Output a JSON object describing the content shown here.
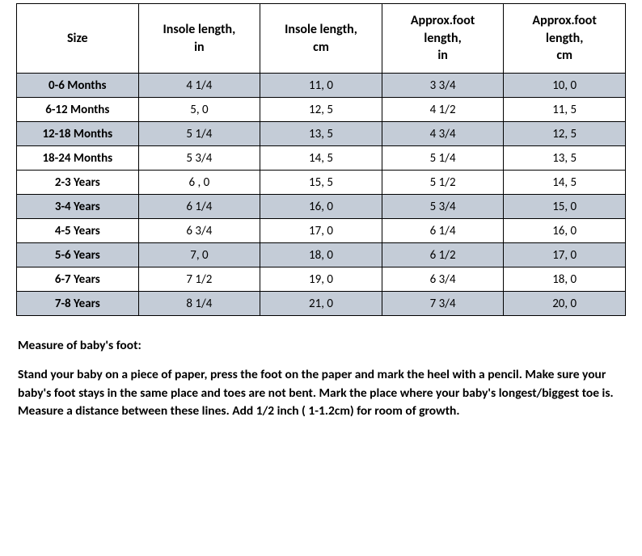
{
  "table": {
    "columns": [
      "Size",
      "Insole length,\nin",
      "Insole length,\ncm",
      "Approx.foot\nlength,\nin",
      "Approx.foot\nlength,\ncm"
    ],
    "col_widths_pct": [
      20,
      20,
      20,
      20,
      20
    ],
    "header_bg": "#ffffff",
    "shaded_bg": "#c4ccd7",
    "border_color": "#000000",
    "rows": [
      {
        "cells": [
          "0-6 Months",
          "4 1/4",
          "11, 0",
          "3 3/4",
          "10, 0"
        ],
        "shaded": true
      },
      {
        "cells": [
          "6-12 Months",
          "5, 0",
          "12, 5",
          "4 1/2",
          "11, 5"
        ],
        "shaded": false
      },
      {
        "cells": [
          "12-18 Months",
          "5 1/4",
          "13, 5",
          "4 3/4",
          "12, 5"
        ],
        "shaded": true
      },
      {
        "cells": [
          "18-24 Months",
          "5 3/4",
          "14, 5",
          "5 1/4",
          "13, 5"
        ],
        "shaded": false
      },
      {
        "cells": [
          "2-3 Years",
          "6 , 0",
          "15, 5",
          "5 1/2",
          "14, 5"
        ],
        "shaded": false
      },
      {
        "cells": [
          "3-4 Years",
          "6 1/4",
          "16, 0",
          "5 3/4",
          "15, 0"
        ],
        "shaded": true
      },
      {
        "cells": [
          "4-5 Years",
          "6 3/4",
          "17, 0",
          "6 1/4",
          "16, 0"
        ],
        "shaded": false
      },
      {
        "cells": [
          "5-6 Years",
          "7, 0",
          "18, 0",
          "6 1/2",
          "17, 0"
        ],
        "shaded": true
      },
      {
        "cells": [
          "6-7 Years",
          "7 1/2",
          "19, 0",
          "6 3/4",
          "18, 0"
        ],
        "shaded": false
      },
      {
        "cells": [
          "7-8 Years",
          "8 1/4",
          "21, 0",
          "7  3/4",
          "20, 0"
        ],
        "shaded": true
      }
    ]
  },
  "notes": {
    "heading": "Measure of baby's foot:",
    "body": "Stand your baby on a piece of paper, press the foot on the paper and mark the heel with a pencil. Make sure your baby's foot stays in the same place and toes are not bent. Mark the place where your baby's longest/biggest toe is. Measure a distance between these lines. Add 1/2 inch ( 1-1.2cm) for room of growth."
  }
}
